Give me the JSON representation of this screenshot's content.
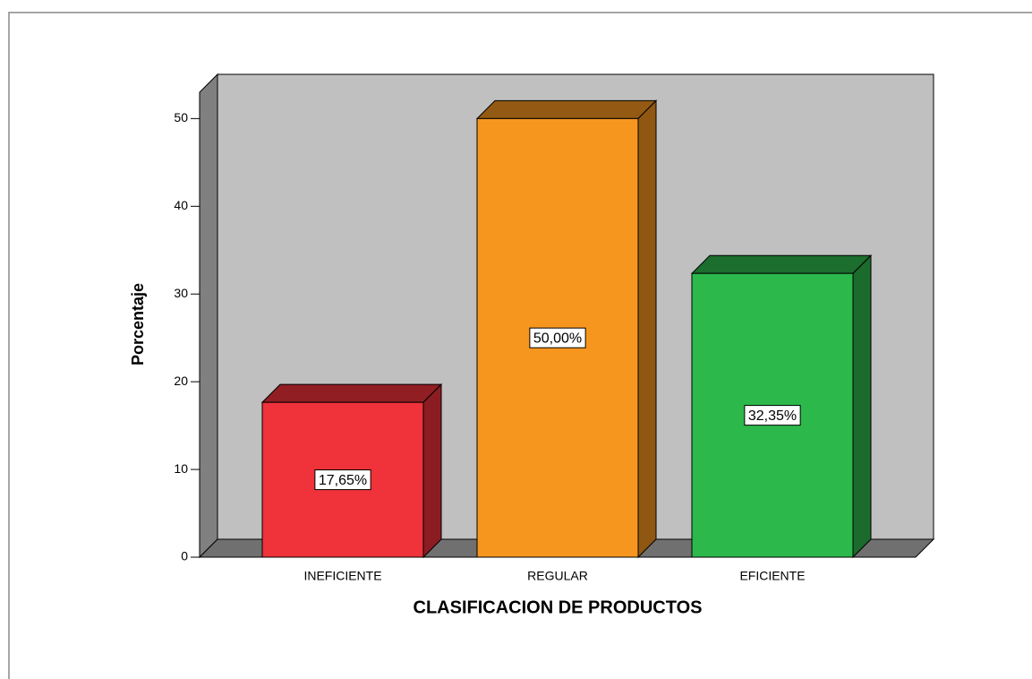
{
  "chart_data": {
    "type": "bar3d",
    "x_label": "CLASIFICACION DE PRODUCTOS",
    "y_label": "Porcentaje",
    "categories": [
      "INEFICIENTE",
      "REGULAR",
      "EFICIENTE"
    ],
    "values": [
      17.65,
      50,
      32.35
    ],
    "value_labels": [
      "17,65%",
      "50,00%",
      "32,35%"
    ],
    "colors": [
      "#f0323a",
      "#f7961f",
      "#2db84b"
    ],
    "ylim": [
      0,
      53
    ],
    "yticks": [
      0,
      10,
      20,
      30,
      40,
      50
    ]
  }
}
